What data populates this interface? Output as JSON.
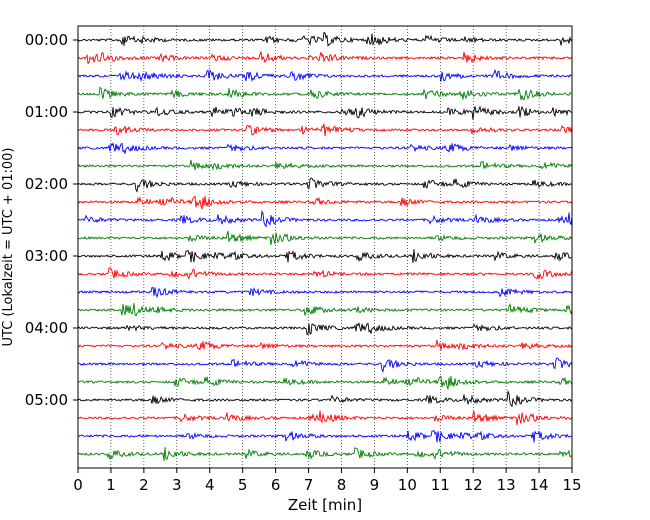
{
  "chart_data": {
    "type": "line",
    "title": "",
    "xlabel": "Zeit  [min]",
    "ylabel": "UTC (Lokalzeit = UTC + 01:00)",
    "xlim": [
      0,
      15
    ],
    "x_ticks": [
      "0",
      "1",
      "2",
      "3",
      "4",
      "5",
      "6",
      "7",
      "8",
      "9",
      "10",
      "11",
      "12",
      "13",
      "14",
      "15"
    ],
    "y_tick_labels": [
      "00:00",
      "01:00",
      "02:00",
      "03:00",
      "04:00",
      "05:00"
    ],
    "trace_start_times": [
      "00:00",
      "00:15",
      "00:30",
      "00:45",
      "01:00",
      "01:15",
      "01:30",
      "01:45",
      "02:00",
      "02:15",
      "02:30",
      "02:45",
      "03:00",
      "03:15",
      "03:30",
      "03:45",
      "04:00",
      "04:15",
      "04:30",
      "04:45",
      "05:00",
      "05:15",
      "05:30",
      "05:45"
    ],
    "trace_colors": [
      "#000000",
      "#ff0000",
      "#0000ff",
      "#007f00"
    ],
    "grid": "vertical dotted lines at each minute",
    "legend": "none"
  }
}
